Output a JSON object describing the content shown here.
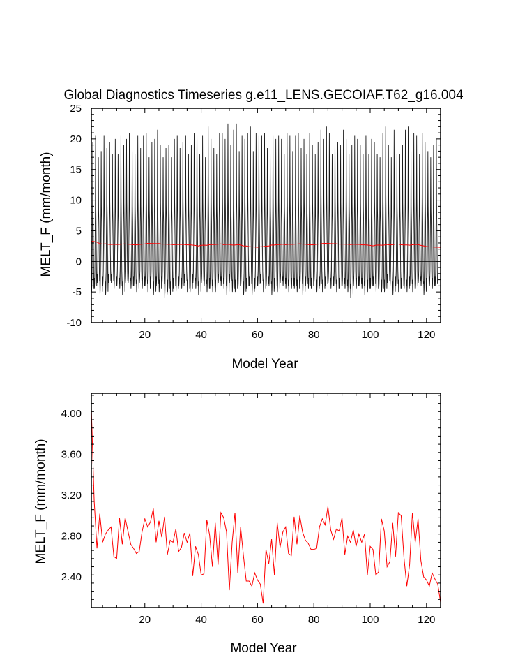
{
  "chart_data": [
    {
      "type": "line",
      "title": "Global Diagnostics Timeseries g.e11_LENS.GECOIAF.T62_g16.004",
      "xlabel": "Model Year",
      "ylabel": "MELT_F (mm/month)",
      "xlim": [
        1,
        125
      ],
      "ylim": [
        -10,
        25
      ],
      "x_ticks": [
        "20",
        "40",
        "60",
        "80",
        "100",
        "120"
      ],
      "y_ticks": [
        "-10",
        "-5",
        "0",
        "5",
        "10",
        "15",
        "20",
        "25"
      ],
      "zero_line": true,
      "series": [
        {
          "color": "#000000",
          "style": "monthly",
          "annual_peaks": [
            19.5,
            20.5,
            17.0,
            18.0,
            20.5,
            18.5,
            19.5,
            17.5,
            20.0,
            17.5,
            20.5,
            19.0,
            20.0,
            21.0,
            18.0,
            17.5,
            20.5,
            18.5,
            20.5,
            21.0,
            17.0,
            19.5,
            20.0,
            21.5,
            19.0,
            17.0,
            18.5,
            19.0,
            17.0,
            20.0,
            20.5,
            18.5,
            19.5,
            20.5,
            17.5,
            19.0,
            21.0,
            22.0,
            17.5,
            20.5,
            17.0,
            22.0,
            20.0,
            18.5,
            17.5,
            21.0,
            21.0,
            20.0,
            22.5,
            19.0,
            21.5,
            22.5,
            18.0,
            20.5,
            20.0,
            21.0,
            22.0,
            18.0,
            21.0,
            20.5,
            20.5,
            21.0,
            18.5,
            17.5,
            20.5,
            20.0,
            20.5,
            20.0,
            17.5,
            21.0,
            20.5,
            18.0,
            20.5,
            21.0,
            18.5,
            20.0,
            17.5,
            21.0,
            19.0,
            17.5,
            19.5,
            21.5,
            20.0,
            22.0,
            21.0,
            17.5,
            20.5,
            19.5,
            19.0,
            21.5,
            20.0,
            17.5,
            19.0,
            20.5,
            20.0,
            19.0,
            17.5,
            20.5,
            17.5,
            20.0,
            19.5,
            17.5,
            17.0,
            21.0,
            22.0,
            19.0,
            17.0,
            21.5,
            17.5,
            17.5,
            19.0,
            21.5,
            22.0,
            18.0,
            21.0,
            20.5,
            17.5,
            21.0,
            19.5,
            18.0,
            17.0,
            19.0,
            20.0
          ],
          "annual_troughs": [
            -5.0,
            -4.5,
            -3.5,
            -5.5,
            -4.0,
            -5.5,
            -3.5,
            -3.5,
            -4.5,
            -4.0,
            -4.5,
            -5.5,
            -3.5,
            -3.5,
            -4.5,
            -4.0,
            -5.0,
            -3.5,
            -4.5,
            -4.0,
            -5.0,
            -4.0,
            -5.5,
            -4.0,
            -5.0,
            -4.0,
            -6.0,
            -5.0,
            -5.5,
            -4.5,
            -5.0,
            -4.0,
            -4.5,
            -3.5,
            -5.0,
            -5.0,
            -3.5,
            -4.5,
            -5.5,
            -3.5,
            -4.0,
            -5.0,
            -4.5,
            -5.0,
            -5.0,
            -3.5,
            -4.0,
            -4.5,
            -5.5,
            -3.5,
            -5.0,
            -5.0,
            -4.5,
            -4.0,
            -5.5,
            -4.5,
            -4.0,
            -5.5,
            -4.5,
            -4.0,
            -3.5,
            -5.0,
            -4.0,
            -4.0,
            -5.5,
            -4.5,
            -5.0,
            -3.5,
            -4.0,
            -4.5,
            -5.0,
            -4.5,
            -4.5,
            -5.0,
            -4.0,
            -5.5,
            -4.0,
            -4.5,
            -4.5,
            -3.5,
            -5.0,
            -4.0,
            -5.0,
            -4.0,
            -3.5,
            -4.5,
            -4.0,
            -5.0,
            -4.5,
            -4.0,
            -4.5,
            -5.0,
            -6.0,
            -4.0,
            -4.5,
            -4.0,
            -4.5,
            -5.5,
            -5.0,
            -4.5,
            -4.0,
            -5.0,
            -4.5,
            -5.0,
            -5.0,
            -3.5,
            -4.0,
            -5.5,
            -4.0,
            -5.0,
            -4.5,
            -4.5,
            -5.0,
            -4.0,
            -5.0,
            -4.5,
            -3.5,
            -4.0,
            -5.5,
            -4.5,
            -4.0,
            -4.5,
            -4.0,
            -5.0,
            -5.5
          ]
        },
        {
          "color": "#ff0000",
          "style": "annual-mean",
          "values": [
            4.05,
            3.15,
            2.68,
            3.02,
            2.74,
            2.82,
            2.86,
            2.89,
            2.6,
            2.58,
            2.98,
            2.72,
            2.98,
            2.85,
            2.72,
            2.68,
            2.63,
            2.65,
            2.84,
            2.97,
            2.89,
            2.94,
            3.07,
            2.74,
            2.95,
            2.79,
            2.99,
            2.62,
            2.76,
            2.74,
            2.87,
            2.65,
            2.69,
            2.83,
            2.74,
            2.83,
            2.41,
            2.7,
            2.62,
            2.42,
            2.43,
            2.96,
            2.81,
            2.5,
            2.93,
            2.52,
            3.03,
            2.98,
            2.84,
            2.27,
            2.74,
            3.03,
            2.44,
            2.89,
            2.61,
            2.36,
            2.36,
            2.31,
            2.44,
            2.37,
            2.33,
            2.14,
            2.67,
            2.53,
            2.77,
            2.42,
            2.93,
            2.69,
            2.84,
            2.89,
            2.63,
            2.61,
            2.99,
            2.72,
            3.0,
            2.84,
            2.76,
            2.73,
            2.67,
            2.67,
            2.68,
            2.89,
            2.97,
            2.91,
            3.09,
            2.86,
            2.77,
            2.87,
            2.85,
            2.98,
            2.62,
            2.8,
            2.74,
            2.86,
            2.7,
            2.82,
            2.74,
            2.82,
            2.42,
            2.7,
            2.67,
            2.42,
            2.45,
            2.97,
            2.85,
            2.5,
            2.55,
            2.93,
            2.6,
            3.03,
            3.0,
            2.59,
            2.31,
            2.52,
            3.03,
            2.74,
            2.97,
            2.56,
            2.4,
            2.37,
            2.31,
            2.44,
            2.38,
            2.33,
            2.15
          ],
          "display_smoothed": true
        }
      ]
    },
    {
      "type": "line",
      "title": "",
      "xlabel": "Model Year",
      "ylabel": "MELT_F (mm/month)",
      "xlim": [
        1,
        125
      ],
      "ylim": [
        2.1,
        4.2
      ],
      "x_ticks": [
        "20",
        "40",
        "60",
        "80",
        "100",
        "120"
      ],
      "y_ticks": [
        "2.40",
        "2.80",
        "3.20",
        "3.60",
        "4.00"
      ],
      "series": [
        {
          "color": "#ff0000",
          "values": [
            4.05,
            3.15,
            2.68,
            3.02,
            2.74,
            2.82,
            2.86,
            2.89,
            2.6,
            2.58,
            2.98,
            2.72,
            2.98,
            2.85,
            2.72,
            2.68,
            2.63,
            2.65,
            2.84,
            2.97,
            2.89,
            2.94,
            3.07,
            2.74,
            2.95,
            2.79,
            2.99,
            2.62,
            2.76,
            2.74,
            2.87,
            2.65,
            2.69,
            2.83,
            2.74,
            2.83,
            2.41,
            2.7,
            2.62,
            2.42,
            2.43,
            2.96,
            2.81,
            2.5,
            2.93,
            2.52,
            3.03,
            2.98,
            2.84,
            2.27,
            2.74,
            3.03,
            2.44,
            2.89,
            2.61,
            2.36,
            2.36,
            2.31,
            2.44,
            2.37,
            2.33,
            2.14,
            2.67,
            2.53,
            2.77,
            2.42,
            2.93,
            2.69,
            2.84,
            2.89,
            2.63,
            2.61,
            2.99,
            2.72,
            3.0,
            2.84,
            2.76,
            2.73,
            2.67,
            2.67,
            2.68,
            2.89,
            2.97,
            2.91,
            3.09,
            2.86,
            2.77,
            2.87,
            2.85,
            2.98,
            2.62,
            2.8,
            2.74,
            2.86,
            2.7,
            2.82,
            2.74,
            2.82,
            2.42,
            2.7,
            2.67,
            2.42,
            2.45,
            2.97,
            2.85,
            2.5,
            2.55,
            2.93,
            2.6,
            3.03,
            3.0,
            2.59,
            2.31,
            2.52,
            3.03,
            2.74,
            2.97,
            2.56,
            2.4,
            2.37,
            2.31,
            2.44,
            2.38,
            2.33,
            2.15
          ]
        }
      ]
    }
  ]
}
